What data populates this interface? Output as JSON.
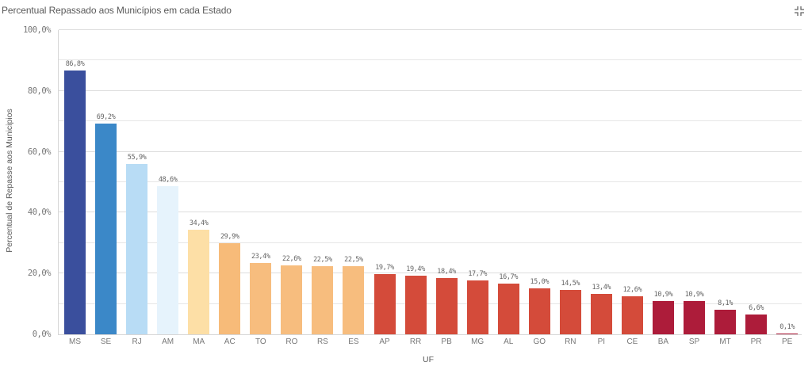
{
  "header": {
    "title": "Percentual Repassado aos Municípios em cada Estado",
    "minimize_icon": "minimize-icon"
  },
  "chart_data": {
    "type": "bar",
    "title": "Percentual Repassado aos Municípios em cada Estado",
    "xlabel": "UF",
    "ylabel": "Percentual de Repasse aos Municipios",
    "ylim": [
      0,
      100
    ],
    "yticks": [
      "0,0%",
      "20,0%",
      "40,0%",
      "60,0%",
      "80,0%",
      "100,0%"
    ],
    "grid": true,
    "categories": [
      "MS",
      "SE",
      "RJ",
      "AM",
      "MA",
      "AC",
      "TO",
      "RO",
      "RS",
      "ES",
      "AP",
      "RR",
      "PB",
      "MG",
      "AL",
      "GO",
      "RN",
      "PI",
      "CE",
      "BA",
      "SP",
      "MT",
      "PR",
      "PE"
    ],
    "values": [
      86.8,
      69.2,
      55.9,
      48.6,
      34.4,
      29.9,
      23.4,
      22.6,
      22.5,
      22.5,
      19.7,
      19.4,
      18.4,
      17.7,
      16.7,
      15.0,
      14.5,
      13.4,
      12.6,
      10.9,
      10.9,
      8.1,
      6.6,
      0.1
    ],
    "labels": [
      "86,8%",
      "69,2%",
      "55,9%",
      "48,6%",
      "34,4%",
      "29,9%",
      "23,4%",
      "22,6%",
      "22,5%",
      "22,5%",
      "19,7%",
      "19,4%",
      "18,4%",
      "17,7%",
      "16,7%",
      "15,0%",
      "14,5%",
      "13,4%",
      "12,6%",
      "10,9%",
      "10,9%",
      "8,1%",
      "6,6%",
      "0,1%"
    ],
    "colors": [
      "#3a4f9d",
      "#3b88c8",
      "#b8dcf5",
      "#e6f3fc",
      "#fddfa6",
      "#f7bb79",
      "#f7bd7e",
      "#f7bd7e",
      "#f7bd7e",
      "#f7bd7e",
      "#d44b3a",
      "#d44b3a",
      "#d44b3a",
      "#d44b3a",
      "#d44b3a",
      "#d44b3a",
      "#d44b3a",
      "#d44b3a",
      "#d44b3a",
      "#ad1c3a",
      "#ad1c3a",
      "#ad1c3a",
      "#ad1c3a",
      "#ad1c3a"
    ]
  }
}
